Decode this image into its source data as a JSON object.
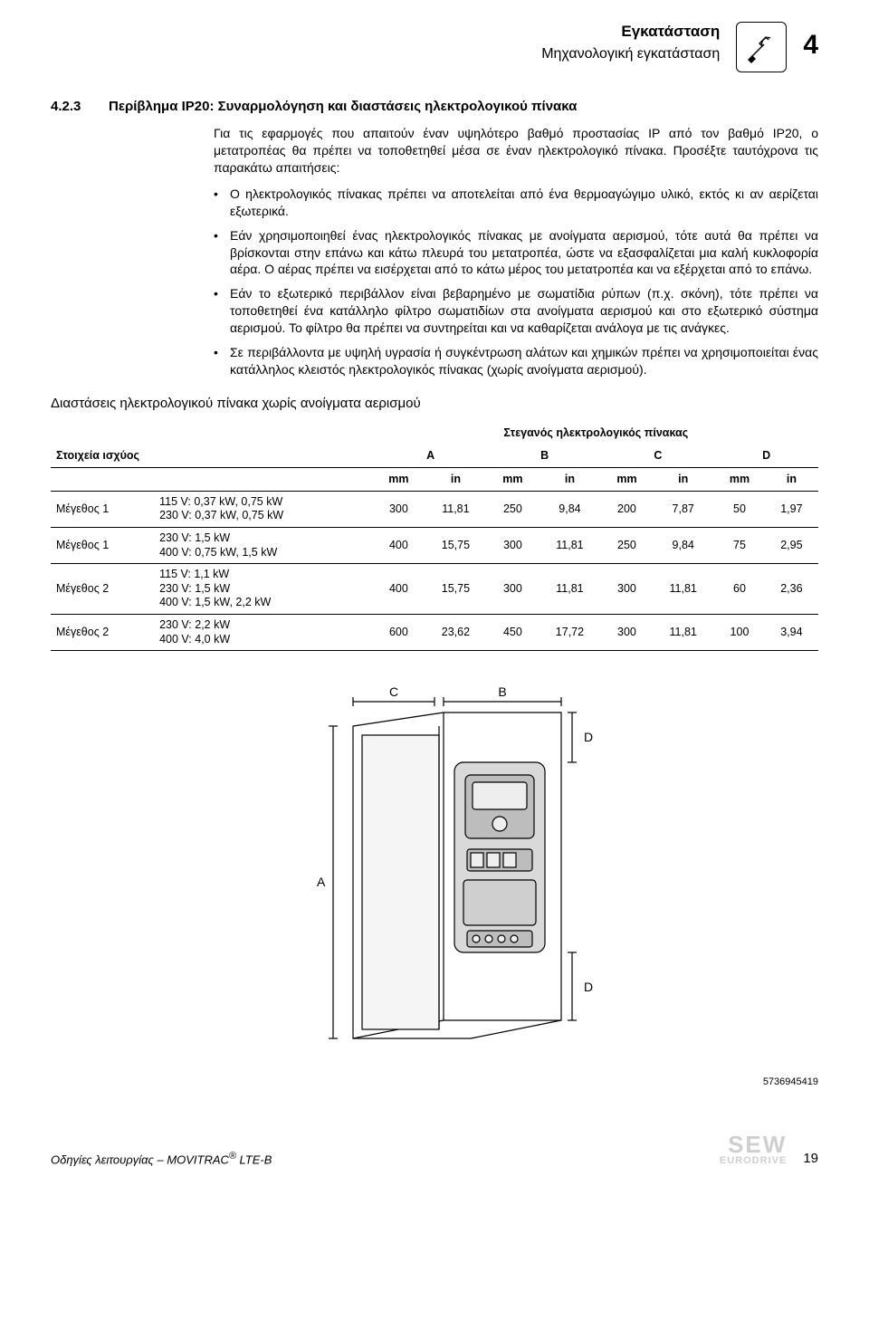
{
  "header": {
    "title": "Εγκατάσταση",
    "subtitle": "Μηχανολογική εγκατάσταση",
    "chapter": "4"
  },
  "section": {
    "number": "4.2.3",
    "title": "Περίβλημα IP20: Συναρμολόγηση και διαστάσεις ηλεκτρολογικού πίνακα",
    "intro": "Για τις εφαρμογές που απαιτούν έναν υψηλότερο βαθμό προστασίας IP από τον βαθμό IP20, ο μετατροπέας θα πρέπει να τοποθετηθεί μέσα σε έναν ηλεκτρολογικό πίνακα. Προσέξτε ταυτόχρονα τις παρακάτω απαιτήσεις:",
    "bullets": [
      "Ο ηλεκτρολογικός πίνακας πρέπει να αποτελείται από ένα θερμοαγώγιμο υλικό, εκτός κι αν αερίζεται εξωτερικά.",
      "Εάν χρησιμοποιηθεί ένας ηλεκτρολογικός πίνακας με ανοίγματα αερισμού, τότε αυτά θα πρέπει να βρίσκονται στην επάνω και κάτω πλευρά του μετατροπέα, ώστε να εξασφαλίζεται μια καλή κυκλοφορία αέρα. Ο αέρας πρέπει να εισέρχεται από το κάτω μέρος του μετατροπέα και να εξέρχεται από το επάνω.",
      "Εάν το εξωτερικό περιβάλλον είναι βεβαρημένο με σωματίδια ρύπων (π.χ. σκόνη), τότε πρέπει να τοποθετηθεί ένα κατάλληλο φίλτρο σωματιδίων στα ανοίγματα αερισμού και στο εξωτερικό σύστημα αερισμού. Το φίλτρο θα πρέπει να συντηρείται και να καθαρίζεται ανάλογα με τις ανάγκες.",
      "Σε περιβάλλοντα με υψηλή υγρασία ή συγκέντρωση αλάτων και χημικών πρέπει να χρησιμοποιείται ένας κατάλληλος κλειστός ηλεκτρολογικός πίνακας (χωρίς ανοίγματα αερισμού)."
    ]
  },
  "table": {
    "title": "Διαστάσεις ηλεκτρολογικού πίνακα χωρίς ανοίγματα αερισμού",
    "super_header": "Στεγανός ηλεκτρολογικός πίνακας",
    "row_header": "Στοιχεία ισχύος",
    "groups": [
      "A",
      "B",
      "C",
      "D"
    ],
    "units": [
      "mm",
      "in",
      "mm",
      "in",
      "mm",
      "in",
      "mm",
      "in"
    ],
    "rows": [
      {
        "size": "Μέγεθος 1",
        "spec": "115 V: 0,37 kW, 0,75 kW\n230 V: 0,37 kW, 0,75 kW",
        "vals": [
          "300",
          "11,81",
          "250",
          "9,84",
          "200",
          "7,87",
          "50",
          "1,97"
        ]
      },
      {
        "size": "Μέγεθος 1",
        "spec": "230 V: 1,5 kW\n400 V: 0,75 kW, 1,5 kW",
        "vals": [
          "400",
          "15,75",
          "300",
          "11,81",
          "250",
          "9,84",
          "75",
          "2,95"
        ]
      },
      {
        "size": "Μέγεθος 2",
        "spec": "115 V: 1,1 kW\n230 V: 1,5 kW\n400 V: 1,5 kW, 2,2 kW",
        "vals": [
          "400",
          "15,75",
          "300",
          "11,81",
          "300",
          "11,81",
          "60",
          "2,36"
        ]
      },
      {
        "size": "Μέγεθος 2",
        "spec": "230 V: 2,2 kW\n400 V: 4,0 kW",
        "vals": [
          "600",
          "23,62",
          "450",
          "17,72",
          "300",
          "11,81",
          "100",
          "3,94"
        ]
      }
    ]
  },
  "figure": {
    "labels": {
      "A": "A",
      "B": "B",
      "C": "C",
      "D": "D"
    },
    "id": "5736945419",
    "colors": {
      "line": "#000000",
      "fill_light": "#f5f5f5",
      "device": "#d9d9d9",
      "device_dark": "#bdbdbd"
    }
  },
  "footer": {
    "doc": "Οδηγίες λειτουργίας – MOVITRAC",
    "reg": "®",
    "model": " LTE-B",
    "page": "19",
    "brand_top": "SEW",
    "brand_bot": "EURODRIVE"
  }
}
